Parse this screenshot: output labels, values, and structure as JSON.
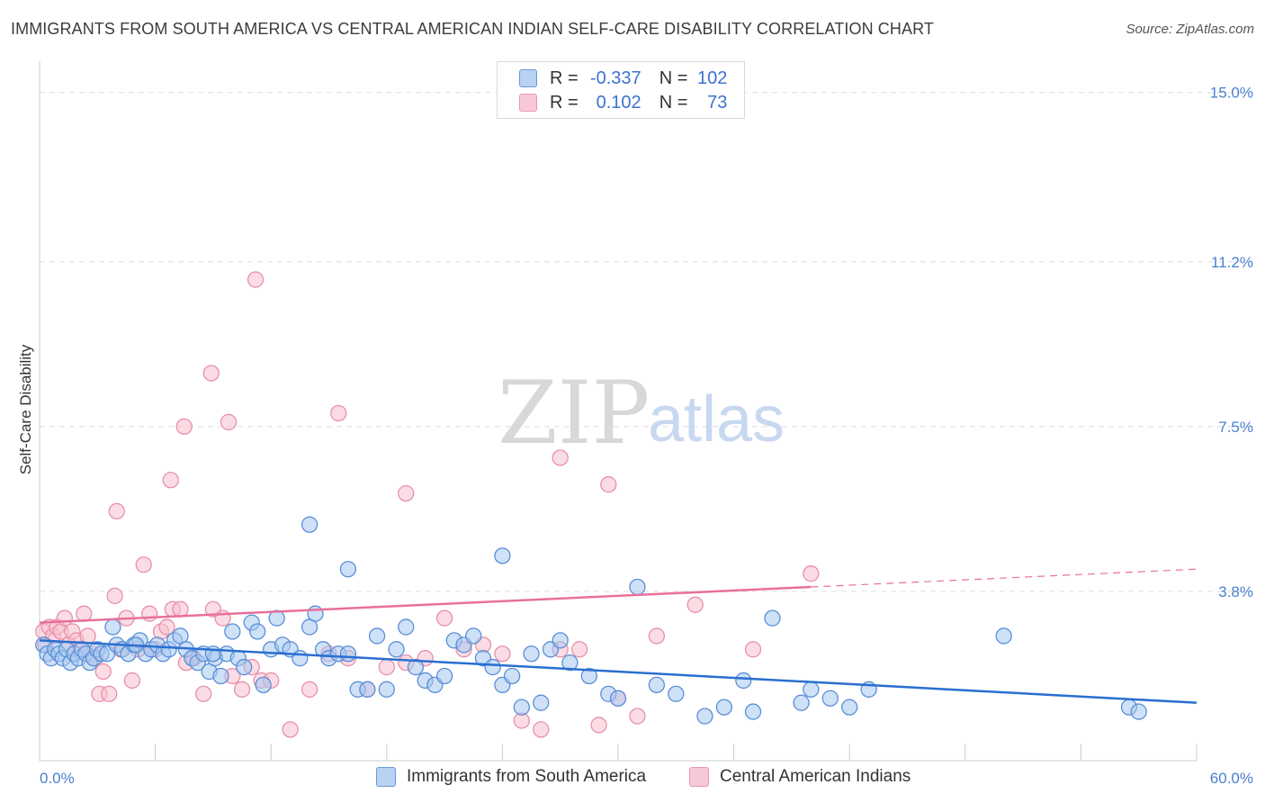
{
  "title": "IMMIGRANTS FROM SOUTH AMERICA VS CENTRAL AMERICAN INDIAN SELF-CARE DISABILITY CORRELATION CHART",
  "source": "Source: ZipAtlas.com",
  "watermark": {
    "zip": "ZIP",
    "atlas": "atlas"
  },
  "legend": {
    "series1": {
      "r_label": "R =",
      "r_value": "-0.337",
      "n_label": "N =",
      "n_value": "102"
    },
    "series2": {
      "r_label": "R =",
      "r_value": "0.102",
      "n_label": "N =",
      "n_value": "73"
    }
  },
  "colors": {
    "blue_fill": "#a8c8f0",
    "blue_stroke": "#5a8fd8",
    "blue_line": "#2a6fd0",
    "pink_fill": "#f8c0d0",
    "pink_stroke": "#e890a8",
    "pink_line": "#e8709a",
    "grid": "#dddddd",
    "tick_text": "#4a7fd0"
  },
  "chart_data": {
    "type": "scatter",
    "title": "IMMIGRANTS FROM SOUTH AMERICA VS CENTRAL AMERICAN INDIAN SELF-CARE DISABILITY CORRELATION CHART",
    "xlabel": "",
    "ylabel": "Self-Care Disability",
    "xlim": [
      0,
      60
    ],
    "ylim": [
      0,
      15.5
    ],
    "x_tick_labels": [
      "0.0%",
      "60.0%"
    ],
    "y_ticks": [
      3.8,
      7.5,
      11.2,
      15.0
    ],
    "y_tick_labels": [
      "3.8%",
      "7.5%",
      "11.2%",
      "15.0%"
    ],
    "series": [
      {
        "name": "Immigrants from South America",
        "color": "blue",
        "trend": {
          "x0": 0,
          "y0": 2.7,
          "x1": 60,
          "y1": 1.3
        },
        "points": [
          [
            0.2,
            2.6
          ],
          [
            0.4,
            2.4
          ],
          [
            0.6,
            2.3
          ],
          [
            0.8,
            2.5
          ],
          [
            1.0,
            2.4
          ],
          [
            1.2,
            2.3
          ],
          [
            1.4,
            2.5
          ],
          [
            1.6,
            2.2
          ],
          [
            1.8,
            2.4
          ],
          [
            2.0,
            2.3
          ],
          [
            2.2,
            2.5
          ],
          [
            2.4,
            2.4
          ],
          [
            2.6,
            2.2
          ],
          [
            2.8,
            2.3
          ],
          [
            3.0,
            2.5
          ],
          [
            3.2,
            2.4
          ],
          [
            3.5,
            2.4
          ],
          [
            3.8,
            3.0
          ],
          [
            4.0,
            2.6
          ],
          [
            4.3,
            2.5
          ],
          [
            4.6,
            2.4
          ],
          [
            4.9,
            2.6
          ],
          [
            5.2,
            2.7
          ],
          [
            5.5,
            2.4
          ],
          [
            5.8,
            2.5
          ],
          [
            6.1,
            2.6
          ],
          [
            6.4,
            2.4
          ],
          [
            6.7,
            2.5
          ],
          [
            7.0,
            2.7
          ],
          [
            7.3,
            2.8
          ],
          [
            7.6,
            2.5
          ],
          [
            7.9,
            2.3
          ],
          [
            8.2,
            2.2
          ],
          [
            8.5,
            2.4
          ],
          [
            8.8,
            2.0
          ],
          [
            9.1,
            2.3
          ],
          [
            9.4,
            1.9
          ],
          [
            9.7,
            2.4
          ],
          [
            10.0,
            2.9
          ],
          [
            10.3,
            2.3
          ],
          [
            10.6,
            2.1
          ],
          [
            11.0,
            3.1
          ],
          [
            11.3,
            2.9
          ],
          [
            11.6,
            1.7
          ],
          [
            12.0,
            2.5
          ],
          [
            12.3,
            3.2
          ],
          [
            12.6,
            2.6
          ],
          [
            13.0,
            2.5
          ],
          [
            13.5,
            2.3
          ],
          [
            14.0,
            3.0
          ],
          [
            14.3,
            3.3
          ],
          [
            14.7,
            2.5
          ],
          [
            15.0,
            2.3
          ],
          [
            15.5,
            2.4
          ],
          [
            16.0,
            2.4
          ],
          [
            16.5,
            1.6
          ],
          [
            17.0,
            1.6
          ],
          [
            17.5,
            2.8
          ],
          [
            18.0,
            1.6
          ],
          [
            18.5,
            2.5
          ],
          [
            19.0,
            3.0
          ],
          [
            19.5,
            2.1
          ],
          [
            20.0,
            1.8
          ],
          [
            20.5,
            1.7
          ],
          [
            21.0,
            1.9
          ],
          [
            21.5,
            2.7
          ],
          [
            22.0,
            2.6
          ],
          [
            22.5,
            2.8
          ],
          [
            23.0,
            2.3
          ],
          [
            23.5,
            2.1
          ],
          [
            24.0,
            1.7
          ],
          [
            24.5,
            1.9
          ],
          [
            25.0,
            1.2
          ],
          [
            25.5,
            2.4
          ],
          [
            26.0,
            1.3
          ],
          [
            26.5,
            2.5
          ],
          [
            27.0,
            2.7
          ],
          [
            27.5,
            2.2
          ],
          [
            28.5,
            1.9
          ],
          [
            29.5,
            1.5
          ],
          [
            30.0,
            1.4
          ],
          [
            31.0,
            3.9
          ],
          [
            32.0,
            1.7
          ],
          [
            33.0,
            1.5
          ],
          [
            34.5,
            1.0
          ],
          [
            35.5,
            1.2
          ],
          [
            36.5,
            1.8
          ],
          [
            37.0,
            1.1
          ],
          [
            38.0,
            3.2
          ],
          [
            39.5,
            1.3
          ],
          [
            40.0,
            1.6
          ],
          [
            41.0,
            1.4
          ],
          [
            42.0,
            1.2
          ],
          [
            43.0,
            1.6
          ],
          [
            50.0,
            2.8
          ],
          [
            56.5,
            1.2
          ],
          [
            57.0,
            1.1
          ],
          [
            24.0,
            4.6
          ],
          [
            16.0,
            4.3
          ],
          [
            14.0,
            5.3
          ],
          [
            5.0,
            2.6
          ],
          [
            9.0,
            2.4
          ]
        ]
      },
      {
        "name": "Central American Indians",
        "color": "pink",
        "trend": {
          "x0": 0,
          "y0": 3.1,
          "x1": 40,
          "y1": 3.9,
          "dash_x1": 60,
          "dash_y1": 4.3
        },
        "points": [
          [
            0.2,
            2.9
          ],
          [
            0.3,
            2.6
          ],
          [
            0.5,
            3.0
          ],
          [
            0.7,
            2.8
          ],
          [
            0.9,
            3.0
          ],
          [
            1.1,
            2.9
          ],
          [
            1.3,
            3.2
          ],
          [
            1.5,
            2.6
          ],
          [
            1.7,
            2.9
          ],
          [
            1.9,
            2.7
          ],
          [
            2.1,
            2.5
          ],
          [
            2.3,
            3.3
          ],
          [
            2.5,
            2.8
          ],
          [
            2.7,
            2.4
          ],
          [
            2.9,
            2.3
          ],
          [
            3.1,
            1.5
          ],
          [
            3.3,
            2.0
          ],
          [
            3.6,
            1.5
          ],
          [
            3.9,
            3.7
          ],
          [
            4.2,
            2.5
          ],
          [
            4.5,
            3.2
          ],
          [
            4.8,
            1.8
          ],
          [
            5.1,
            2.5
          ],
          [
            5.4,
            4.4
          ],
          [
            5.7,
            3.3
          ],
          [
            6.0,
            2.5
          ],
          [
            6.3,
            2.9
          ],
          [
            6.6,
            3.0
          ],
          [
            6.9,
            3.4
          ],
          [
            7.3,
            3.4
          ],
          [
            7.6,
            2.2
          ],
          [
            8.0,
            2.3
          ],
          [
            8.5,
            1.5
          ],
          [
            9.0,
            3.4
          ],
          [
            9.5,
            3.2
          ],
          [
            10.0,
            1.9
          ],
          [
            10.5,
            1.6
          ],
          [
            11.0,
            2.1
          ],
          [
            11.5,
            1.8
          ],
          [
            12.0,
            1.8
          ],
          [
            13.0,
            0.7
          ],
          [
            14.0,
            1.6
          ],
          [
            15.0,
            2.4
          ],
          [
            16.0,
            2.3
          ],
          [
            17.0,
            1.6
          ],
          [
            18.0,
            2.1
          ],
          [
            19.0,
            2.2
          ],
          [
            20.0,
            2.3
          ],
          [
            21.0,
            3.2
          ],
          [
            22.0,
            2.5
          ],
          [
            23.0,
            2.6
          ],
          [
            24.0,
            2.4
          ],
          [
            25.0,
            0.9
          ],
          [
            26.0,
            0.7
          ],
          [
            27.0,
            2.5
          ],
          [
            28.0,
            2.5
          ],
          [
            29.0,
            0.8
          ],
          [
            30.0,
            1.4
          ],
          [
            31.0,
            1.0
          ],
          [
            32.0,
            2.8
          ],
          [
            34.0,
            3.5
          ],
          [
            37.0,
            2.5
          ],
          [
            40.0,
            4.2
          ],
          [
            11.2,
            10.8
          ],
          [
            8.9,
            8.7
          ],
          [
            7.5,
            7.5
          ],
          [
            9.8,
            7.6
          ],
          [
            15.5,
            7.8
          ],
          [
            6.8,
            6.3
          ],
          [
            19.0,
            6.0
          ],
          [
            27.0,
            6.8
          ],
          [
            29.5,
            6.2
          ],
          [
            4.0,
            5.6
          ]
        ]
      }
    ]
  },
  "bottom_legend": {
    "series1": "Immigrants from South America",
    "series2": "Central American Indians"
  }
}
